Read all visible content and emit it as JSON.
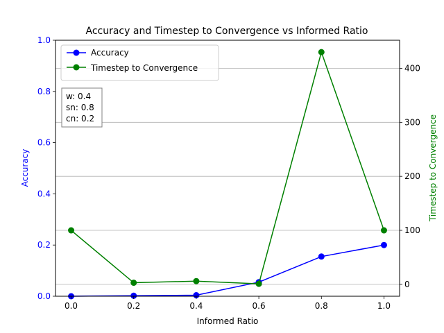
{
  "chart_data": {
    "type": "line",
    "title": "Accuracy and Timestep to Convergence vs Informed Ratio",
    "xlabel": "Informed Ratio",
    "ylabel_left": "Accuracy",
    "ylabel_right": "Timestep to Convergence",
    "x": [
      0.0,
      0.2,
      0.4,
      0.6,
      0.8,
      1.0
    ],
    "xlim": [
      -0.05,
      1.05
    ],
    "ylim_left": [
      0,
      1.0
    ],
    "ylim_right": [
      -22,
      452
    ],
    "x_ticks": [
      "0.0",
      "0.2",
      "0.4",
      "0.6",
      "0.8",
      "1.0"
    ],
    "y_left_ticks": [
      "0.0",
      "0.2",
      "0.4",
      "0.6",
      "0.8",
      "1.0"
    ],
    "y_right_ticks": [
      "0",
      "100",
      "200",
      "300",
      "400"
    ],
    "grid": "horizontal lines at right-axis ticks",
    "legend_position": "upper-left",
    "series": [
      {
        "name": "Accuracy",
        "axis": "left",
        "color": "#0000ff",
        "values": [
          0.0,
          0.002,
          0.004,
          0.055,
          0.155,
          0.2
        ]
      },
      {
        "name": "Timestep to Convergence",
        "axis": "right",
        "color": "#008000",
        "values": [
          100,
          3,
          6,
          1,
          430,
          100
        ]
      }
    ],
    "annotation": {
      "position": "upper-left",
      "lines": [
        "w: 0.4",
        "sn: 0.8",
        "cn: 0.2"
      ]
    }
  }
}
